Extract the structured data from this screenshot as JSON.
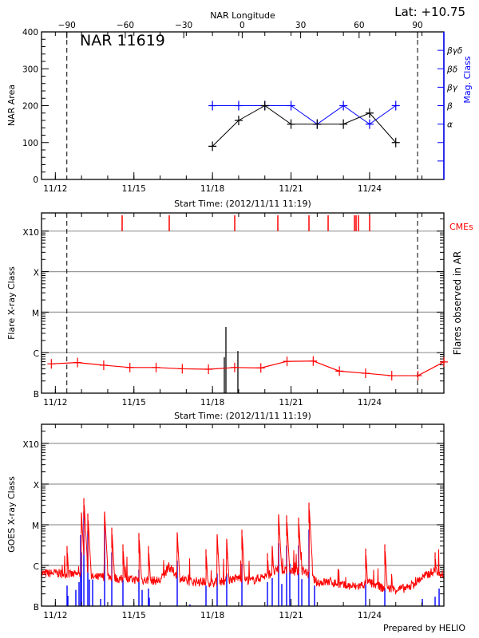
{
  "header": {
    "latitude": "Lat: +10.75",
    "region_title": "NAR 11619",
    "footer": "Prepared by HELIO"
  },
  "colors": {
    "area": "#000000",
    "mag_class": "#0000ff",
    "flare": "#ff0000",
    "cme": "#ff0000",
    "goes_long": "#ff0000",
    "goes_short": "#0000ff",
    "grid": "#999999"
  },
  "time_axis": {
    "label": "Start Time: (2012/11/11 11:19)",
    "range": [
      "2012-11-11T11:19",
      "2012-11-26T20:05"
    ],
    "major_ticks": [
      {
        "t": "2012-11-12T00:00",
        "label": "11/12"
      },
      {
        "t": "2012-11-15T00:00",
        "label": "11/15"
      },
      {
        "t": "2012-11-18T00:00",
        "label": "11/18"
      },
      {
        "t": "2012-11-21T00:00",
        "label": "11/21"
      },
      {
        "t": "2012-11-24T00:00",
        "label": "11/24"
      }
    ]
  },
  "chart_data": [
    {
      "type": "line",
      "panel": "area",
      "title": "NAR 11619",
      "ylabel": "NAR Area",
      "y2label": "Mag. Class",
      "ylim": [
        0,
        400
      ],
      "yticks": [
        0,
        100,
        200,
        300,
        400
      ],
      "top_axis": {
        "label": "NAR Longitude",
        "range": [
          -103,
          103.5
        ],
        "ticks": [
          -90,
          -60,
          -30,
          0,
          30,
          60,
          90
        ],
        "limb_lines": [
          -90,
          90
        ]
      },
      "mag_class_axis": [
        {
          "area": 50,
          "label": ""
        },
        {
          "area": 100,
          "label": ""
        },
        {
          "area": 150,
          "label": "α"
        },
        {
          "area": 200,
          "label": "β"
        },
        {
          "area": 250,
          "label": "βγ"
        },
        {
          "area": 300,
          "label": "βδ"
        },
        {
          "area": 350,
          "label": "βγδ"
        }
      ],
      "x": [
        "2012-11-18T00:00",
        "2012-11-19T00:00",
        "2012-11-20T00:00",
        "2012-11-21T00:00",
        "2012-11-22T00:00",
        "2012-11-23T00:00",
        "2012-11-24T00:00",
        "2012-11-25T00:00"
      ],
      "series": [
        {
          "values": [
            90,
            160,
            200,
            150,
            150,
            150,
            180,
            100
          ]
        },
        {
          "mag_class": [
            "β",
            "β",
            "β",
            "β",
            "α",
            "β",
            "α",
            "β"
          ]
        }
      ]
    },
    {
      "type": "line",
      "panel": "flares",
      "ylabel": "Flare X-ray Class",
      "y2label": "Flares observed in AR",
      "yticks": [
        "B",
        "C",
        "M",
        "X",
        "X10"
      ],
      "scale": "log",
      "grid": true,
      "cme_label": "CMEs",
      "cmes": [
        "2012-11-14T13:13",
        "2012-11-16T08:23",
        "2012-11-18T20:24",
        "2012-11-20T11:54",
        "2012-11-21T16:26",
        "2012-11-22T10:00",
        "2012-11-23T10:09",
        "2012-11-23T11:37",
        "2012-11-23T13:48",
        "2012-11-24T00:03"
      ],
      "ar_flares": [
        {
          "t": "2012-11-18T10:52",
          "class": "B7.7"
        },
        {
          "t": "2012-11-18T12:20",
          "class": "C4.3"
        },
        {
          "t": "2012-11-18T23:18",
          "class": "C1.1"
        }
      ],
      "background": [
        {
          "t": "2012-11-11T20:20",
          "class": "B5.3"
        },
        {
          "t": "2012-11-12T20:20",
          "class": "B5.7"
        },
        {
          "t": "2012-11-13T20:20",
          "class": "B4.9"
        },
        {
          "t": "2012-11-14T20:20",
          "class": "B4.3"
        },
        {
          "t": "2012-11-15T20:20",
          "class": "B4.3"
        },
        {
          "t": "2012-11-16T20:20",
          "class": "B4.0"
        },
        {
          "t": "2012-11-17T20:20",
          "class": "B3.9"
        },
        {
          "t": "2012-11-18T20:20",
          "class": "B4.3"
        },
        {
          "t": "2012-11-19T20:20",
          "class": "B4.2"
        },
        {
          "t": "2012-11-20T20:20",
          "class": "B6.1"
        },
        {
          "t": "2012-11-21T20:20",
          "class": "B6.2"
        },
        {
          "t": "2012-11-22T20:20",
          "class": "B3.5"
        },
        {
          "t": "2012-11-23T20:20",
          "class": "B3.1"
        },
        {
          "t": "2012-11-24T20:20",
          "class": "B2.7"
        },
        {
          "t": "2012-11-25T20:20",
          "class": "B2.7"
        },
        {
          "t": "2012-11-26T20:05",
          "class": "B5.9"
        }
      ]
    },
    {
      "type": "line",
      "panel": "goes",
      "ylabel": "GOES X-ray Class",
      "yticks": [
        "B",
        "C",
        "M",
        "X",
        "X10"
      ],
      "scale": "log",
      "grid": true,
      "long_channel_baseline": [
        [
          "2012-11-11T11:19",
          "B6.3"
        ],
        [
          "2012-11-12T00:00",
          "B6.5"
        ],
        [
          "2012-11-12T12:00",
          "B6.0"
        ],
        [
          "2012-11-13T00:00",
          "B6.0"
        ],
        [
          "2012-11-13T12:00",
          "B5.0"
        ],
        [
          "2012-11-14T00:00",
          "B5.5"
        ],
        [
          "2012-11-14T12:00",
          "B4.5"
        ],
        [
          "2012-11-15T00:00",
          "B4.5"
        ],
        [
          "2012-11-15T12:00",
          "B4.3"
        ],
        [
          "2012-11-16T00:00",
          "B4.2"
        ],
        [
          "2012-11-16T08:00",
          "B9.0"
        ],
        [
          "2012-11-16T18:00",
          "B5.0"
        ],
        [
          "2012-11-17T00:00",
          "B4.0"
        ],
        [
          "2012-11-17T12:00",
          "B4.0"
        ],
        [
          "2012-11-18T00:00",
          "B3.8"
        ],
        [
          "2012-11-18T12:00",
          "B4.2"
        ],
        [
          "2012-11-19T00:00",
          "B5.0"
        ],
        [
          "2012-11-19T12:00",
          "B4.2"
        ],
        [
          "2012-11-20T00:00",
          "B5.5"
        ],
        [
          "2012-11-20T12:00",
          "B7.5"
        ],
        [
          "2012-11-21T00:00",
          "B7.0"
        ],
        [
          "2012-11-21T12:00",
          "B7.5"
        ],
        [
          "2012-11-22T00:00",
          "B3.8"
        ],
        [
          "2012-11-22T12:00",
          "B4.0"
        ],
        [
          "2012-11-23T00:00",
          "B3.2"
        ],
        [
          "2012-11-23T12:00",
          "B3.0"
        ],
        [
          "2012-11-24T00:00",
          "B3.8"
        ],
        [
          "2012-11-24T12:00",
          "B2.8"
        ],
        [
          "2012-11-25T00:00",
          "B2.6"
        ],
        [
          "2012-11-25T12:00",
          "B2.8"
        ],
        [
          "2012-11-26T00:00",
          "B5.0"
        ],
        [
          "2012-11-26T12:00",
          "B7.5"
        ],
        [
          "2012-11-26T20:05",
          "B6.0"
        ]
      ],
      "long_channel_peaks": [
        [
          "2012-11-12T10:44",
          "C3.0"
        ],
        [
          "2012-11-12T23:54",
          "M2.0"
        ],
        [
          "2012-11-13T02:07",
          "M4.5"
        ],
        [
          "2012-11-13T05:46",
          "M1.9"
        ],
        [
          "2012-11-13T21:07",
          "M2.1"
        ],
        [
          "2012-11-14T03:43",
          "C8.5"
        ],
        [
          "2012-11-14T13:57",
          "C3.3"
        ],
        [
          "2012-11-15T04:35",
          "C6.3"
        ],
        [
          "2012-11-15T13:22",
          "C3.0"
        ],
        [
          "2012-11-16T15:42",
          "C6.5"
        ],
        [
          "2012-11-17T18:03",
          "C2.5"
        ],
        [
          "2012-11-18T04:17",
          "C5.8"
        ],
        [
          "2012-11-18T13:03",
          "C4.5"
        ],
        [
          "2012-11-19T02:59",
          "C7.6"
        ],
        [
          "2012-11-20T02:23",
          "C2.0"
        ],
        [
          "2012-11-20T06:46",
          "C3.0"
        ],
        [
          "2012-11-20T12:37",
          "M1.8"
        ],
        [
          "2012-11-20T19:57",
          "M1.7"
        ],
        [
          "2012-11-21T06:56",
          "M1.5"
        ],
        [
          "2012-11-21T16:26",
          "M3.5"
        ],
        [
          "2012-11-23T20:24",
          "C2.6"
        ],
        [
          "2012-11-24T13:57",
          "C3.3"
        ],
        [
          "2012-11-26T12:03",
          "C2.1"
        ]
      ],
      "short_channel": [
        [
          "2012-11-12T10:44",
          "B3.2"
        ],
        [
          "2012-11-12T11:28",
          "B1.8"
        ],
        [
          "2012-11-12T18:46",
          "B2.5"
        ],
        [
          "2012-11-12T21:43",
          "B3.9"
        ],
        [
          "2012-11-12T23:11",
          "C5.6"
        ],
        [
          "2012-11-12T23:54",
          "C2.1"
        ],
        [
          "2012-11-13T02:07",
          "M2.1"
        ],
        [
          "2012-11-13T05:46",
          "C7.1"
        ],
        [
          "2012-11-13T07:13",
          "B4.5"
        ],
        [
          "2012-11-13T10:09",
          "B4.5"
        ],
        [
          "2012-11-13T17:28",
          "B1.5"
        ],
        [
          "2012-11-13T21:07",
          "C9.5"
        ],
        [
          "2012-11-14T03:43",
          "C2.1"
        ],
        [
          "2012-11-14T13:57",
          "B4.5"
        ],
        [
          "2012-11-15T04:35",
          "B7.9"
        ],
        [
          "2012-11-15T07:31",
          "B2.5"
        ],
        [
          "2012-11-15T13:22",
          "B2.7"
        ],
        [
          "2012-11-15T14:05",
          "B1.6"
        ],
        [
          "2012-11-16T15:42",
          "C1.3"
        ],
        [
          "2012-11-17T03:24",
          "B1.1"
        ],
        [
          "2012-11-17T18:03",
          "B3.2"
        ],
        [
          "2012-11-18T04:17",
          "B6.3"
        ],
        [
          "2012-11-18T13:03",
          "B6.3"
        ],
        [
          "2012-11-19T02:59",
          "C1.1"
        ],
        [
          "2012-11-20T02:23",
          "B3.9"
        ],
        [
          "2012-11-20T06:46",
          "B4.9"
        ],
        [
          "2012-11-20T12:37",
          "C3.5"
        ],
        [
          "2012-11-20T15:33",
          "B3.5"
        ],
        [
          "2012-11-20T19:57",
          "C3.1"
        ],
        [
          "2012-11-20T22:52",
          "C1.1"
        ],
        [
          "2012-11-21T06:56",
          "C3.1"
        ],
        [
          "2012-11-21T09:52",
          "B4.6"
        ],
        [
          "2012-11-21T16:26",
          "C7.6"
        ],
        [
          "2012-11-21T21:33",
          "B3.2"
        ],
        [
          "2012-11-23T20:24",
          "B4.2"
        ],
        [
          "2012-11-24T13:57",
          "B2.8"
        ],
        [
          "2012-11-26T00:20",
          "B1.5"
        ],
        [
          "2012-11-26T12:03",
          "B1.7"
        ],
        [
          "2012-11-26T15:43",
          "B2.7"
        ]
      ]
    }
  ]
}
